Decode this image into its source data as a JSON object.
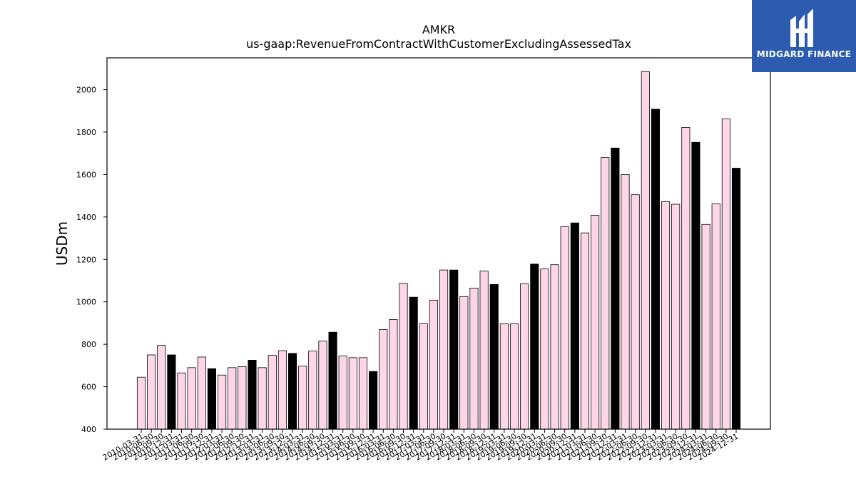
{
  "logo": {
    "text": "MIDGARD FINANCE",
    "background": "#2c5bb0"
  },
  "colors": {
    "q4_bar": "#000000",
    "other_bar": "#ffd6e8",
    "edge": "#000000"
  },
  "chart_data": {
    "type": "bar",
    "title": "AMKR",
    "subtitle": "us-gaap:RevenueFromContractWithCustomerExcludingAssessedTax",
    "xlabel": "",
    "ylabel": "USDm",
    "ylim": [
      400,
      2150
    ],
    "yticks": [
      400,
      600,
      800,
      1000,
      1200,
      1400,
      1600,
      1800,
      2000
    ],
    "grid": false,
    "categories": [
      "2010-03-31",
      "2010-06-30",
      "2010-09-30",
      "2010-12-31",
      "2011-03-31",
      "2011-06-30",
      "2011-09-30",
      "2011-12-31",
      "2012-03-31",
      "2012-06-30",
      "2012-09-30",
      "2012-12-31",
      "2013-03-31",
      "2013-06-30",
      "2013-09-30",
      "2013-12-31",
      "2014-03-31",
      "2014-06-30",
      "2014-09-30",
      "2014-12-31",
      "2015-03-31",
      "2015-06-30",
      "2015-09-30",
      "2015-12-31",
      "2016-03-31",
      "2016-06-30",
      "2016-09-30",
      "2016-12-31",
      "2017-03-31",
      "2017-06-30",
      "2017-09-30",
      "2017-12-31",
      "2018-03-31",
      "2018-06-30",
      "2018-09-30",
      "2018-12-31",
      "2019-03-31",
      "2019-06-30",
      "2019-09-30",
      "2019-12-31",
      "2020-03-31",
      "2020-06-30",
      "2020-09-30",
      "2020-12-31",
      "2021-03-31",
      "2021-06-30",
      "2021-09-30",
      "2021-12-31",
      "2022-03-31",
      "2022-06-30",
      "2022-09-30",
      "2022-12-31",
      "2023-03-31",
      "2023-06-30",
      "2023-09-30",
      "2023-12-31",
      "2024-03-31",
      "2024-06-30",
      "2024-09-30",
      "2024-12-31"
    ],
    "values": [
      645,
      750,
      795,
      750,
      665,
      690,
      740,
      685,
      655,
      690,
      695,
      725,
      690,
      748,
      770,
      757,
      697,
      768,
      815,
      857,
      745,
      737,
      737,
      672,
      870,
      917,
      1087,
      1022,
      898,
      1008,
      1150,
      1150,
      1025,
      1065,
      1145,
      1082,
      897,
      897,
      1085,
      1178,
      1155,
      1175,
      1355,
      1372,
      1325,
      1408,
      1680,
      1725,
      1600,
      1505,
      2085,
      1908,
      1472,
      1460,
      1822,
      1752,
      1365,
      1462,
      1862,
      1630
    ]
  }
}
